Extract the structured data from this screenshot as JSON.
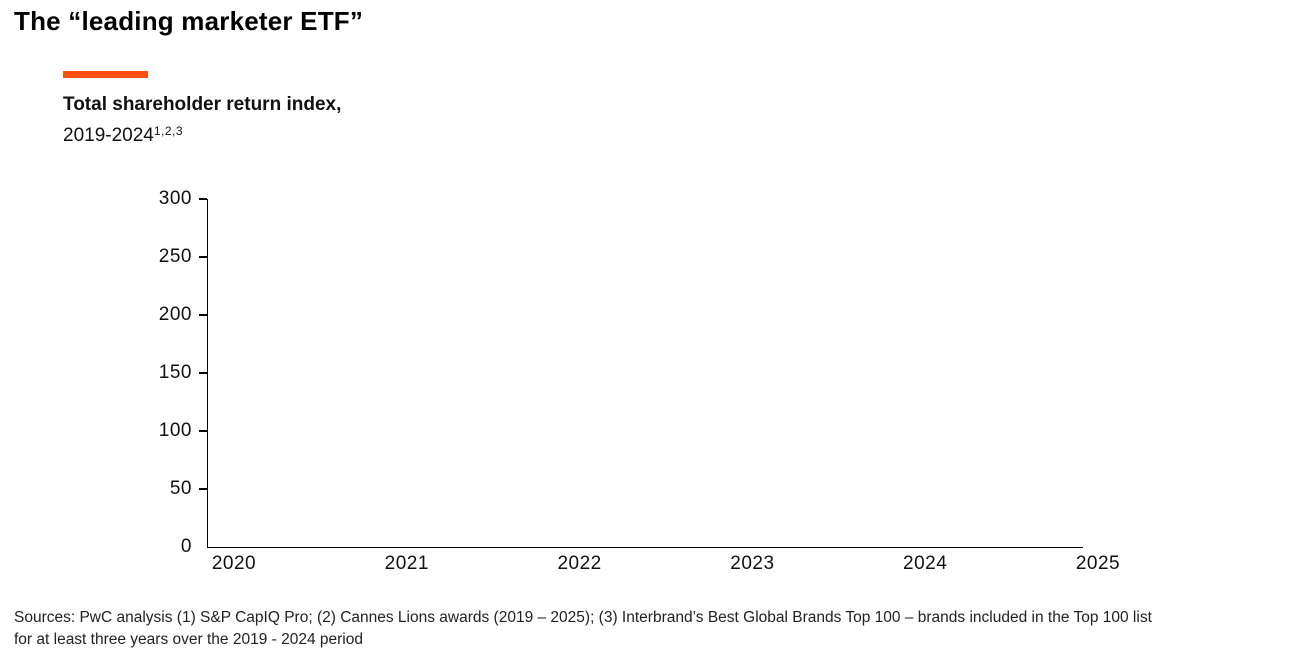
{
  "page": {
    "title": "The “leading marketer ETF”"
  },
  "accent_color": "#FB4F0E",
  "chart_header": {
    "title_bold": "Total shareholder return index,",
    "subtitle": "2019-2024",
    "superscript": "1,2,3"
  },
  "chart_data": {
    "type": "line",
    "title": "Total shareholder return index, 2019-2024",
    "xlabel": "",
    "ylabel": "",
    "x_tick_labels": [
      "2020",
      "2021",
      "2022",
      "2023",
      "2024",
      "2025"
    ],
    "y_tick_labels": [
      "0",
      "50",
      "100",
      "150",
      "200",
      "250",
      "300"
    ],
    "ylim": [
      0,
      300
    ],
    "grid": false,
    "legend": "none",
    "series": []
  },
  "footer": {
    "line1": "Sources: PwC analysis (1) S&P CapIQ Pro; (2) Cannes Lions awards (2019 – 2025); (3) Interbrand’s Best Global Brands Top 100 – brands included in the Top 100 list",
    "line2": "for at least three years over the 2019 - 2024 period"
  }
}
